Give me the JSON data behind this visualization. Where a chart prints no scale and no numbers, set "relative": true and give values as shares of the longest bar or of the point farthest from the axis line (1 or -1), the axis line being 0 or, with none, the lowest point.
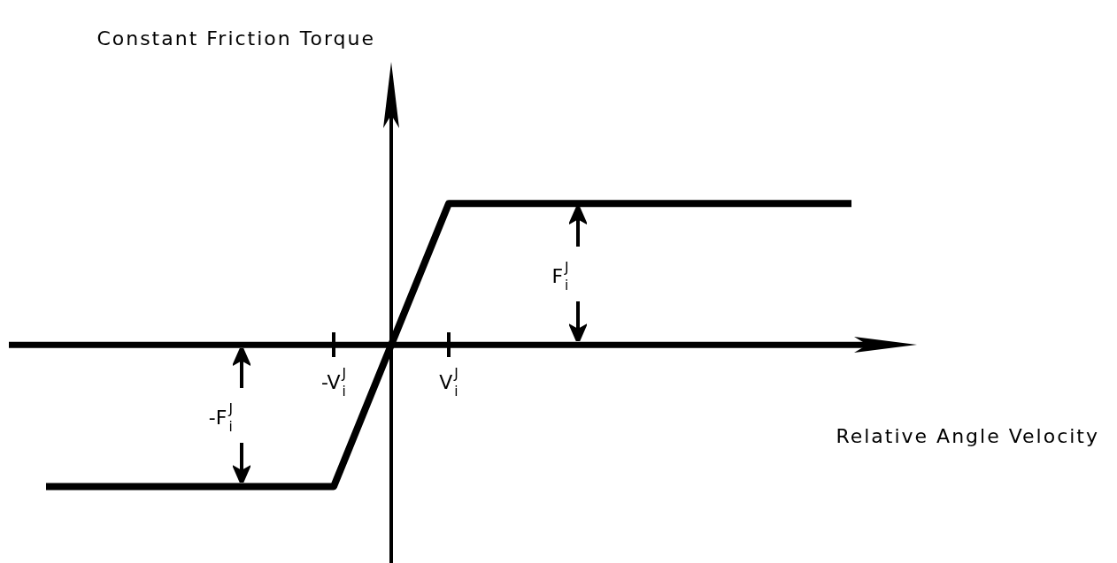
{
  "chart_data": {
    "type": "line",
    "relative": true,
    "xlabel": "Relative Angle Velocity",
    "title": "Constant Friction Torque",
    "categories": [
      null,
      null,
      null,
      null,
      null,
      "-V$_{i}$$^{J}$",
      null,
      "V$_{i}$$^{J}$",
      null,
      null,
      null,
      null,
      null,
      null,
      null
    ],
    "series": [
      {
        "color": "#000000",
        "values": [
          -1,
          -1,
          -1,
          -1,
          -1,
          -1,
          0,
          1,
          1,
          1,
          1,
          1,
          1,
          1,
          1
        ]
      }
    ],
    "annotations": [
      "F$_{i}$$^{J}$",
      "-F$_{i}$$^{J}$"
    ],
    "legend": false,
    "marker": "none",
    "line_style": "solid"
  }
}
